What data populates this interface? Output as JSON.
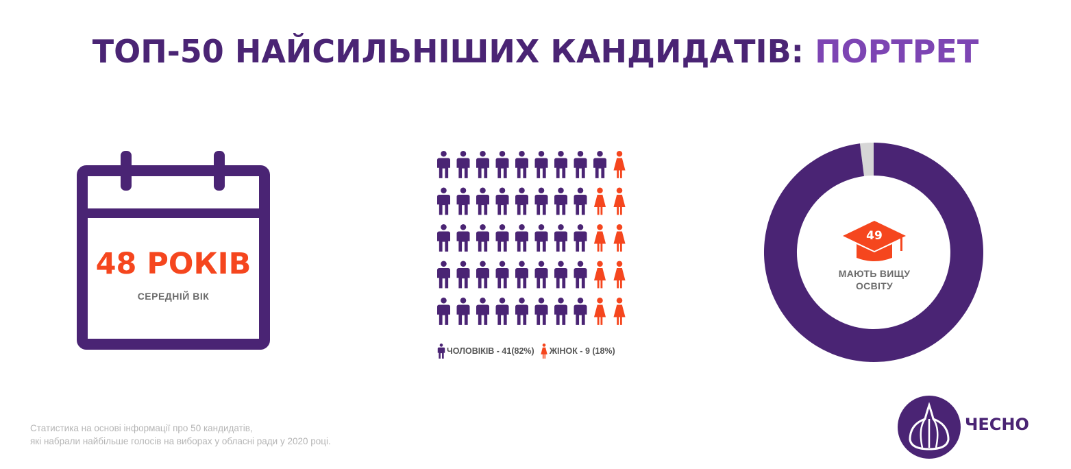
{
  "title": {
    "main": "ТОП-50 НАЙСИЛЬНІШИХ КАНДИДАТІВ:",
    "accent": "ПОРТРЕТ"
  },
  "colors": {
    "purple": "#4a2474",
    "accent_purple": "#7d45b3",
    "orange": "#f5461e",
    "grey": "#d6d6d6"
  },
  "age": {
    "value": "48 РОКІВ",
    "label": "СЕРЕДНІЙ ВІК",
    "icon": "calendar-icon"
  },
  "chart_data": [
    {
      "type": "pictogram",
      "total": 50,
      "columns": 10,
      "series": [
        {
          "name": "ЧОЛОВІКІВ",
          "value": 41,
          "percent": 82,
          "color": "#4a2474",
          "icon": "male-person-icon"
        },
        {
          "name": "ЖІНОК",
          "value": 9,
          "percent": 18,
          "color": "#f5461e",
          "icon": "female-person-icon"
        }
      ],
      "legend": [
        "ЧОЛОВІКІВ - 41(82%)",
        "ЖІНОК - 9 (18%)"
      ]
    },
    {
      "type": "pie",
      "donut": true,
      "total": 50,
      "values": [
        49,
        1
      ],
      "colors": [
        "#4a2474",
        "#d6d6d6"
      ],
      "center_value": "49",
      "center_label": "МАЮТЬ ВИЩУ ОСВІТУ",
      "center_icon": "graduation-cap-icon"
    }
  ],
  "footnote": {
    "line1": "Статистика на основі інформації про 50 кандидатів,",
    "line2": "які набрали найбільше голосів на виборах у обласні ради у 2020 році."
  },
  "logo": {
    "text": "ЧЕСНО",
    "icon": "garlic-logo-icon"
  }
}
